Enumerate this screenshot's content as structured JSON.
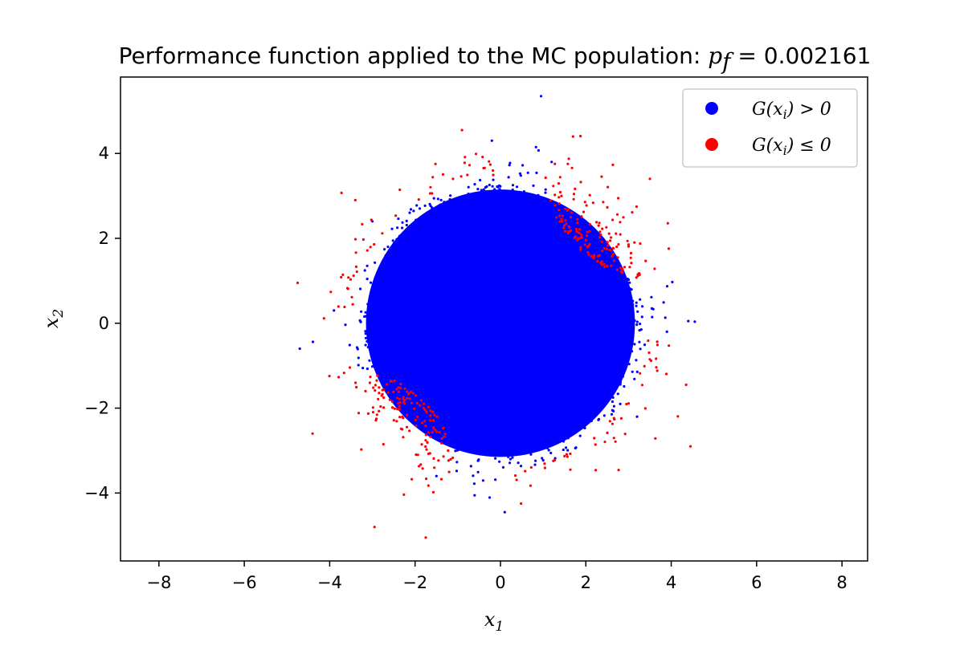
{
  "chart_data": {
    "type": "scatter",
    "title": "Performance function applied to the MC population: ",
    "title_math": "p",
    "title_math_sub": "f",
    "title_value": " = 0.002161",
    "xlabel": "x",
    "xlabel_sub": "1",
    "ylabel": "x",
    "ylabel_sub": "2",
    "xlim": [
      -8.9,
      8.6
    ],
    "ylim": [
      -5.6,
      5.8
    ],
    "xticks": [
      -8,
      -6,
      -4,
      -2,
      0,
      2,
      4,
      6,
      8
    ],
    "xtick_labels": [
      "−8",
      "−6",
      "−4",
      "−2",
      "0",
      "2",
      "4",
      "6",
      "8"
    ],
    "yticks": [
      -4,
      -2,
      0,
      2,
      4
    ],
    "ytick_labels": [
      "−4",
      "−2",
      "0",
      "2",
      "4"
    ],
    "grid": false,
    "legend_position": "top-right",
    "pf": 0.002161,
    "distribution": "standard normal, 2D, radius up to ~4.8",
    "failure_regions": "quadrants I and III corners beyond curved limit near |x1*x2| ~ 3.5 and outer ring in quadrants II and IV",
    "series": [
      {
        "name": "G(x_i) > 0",
        "legend_text": "G(x",
        "legend_sub": "i",
        "legend_rest": ") > 0",
        "color": "#0000ff",
        "points_sample": [
          [
            0.95,
            5.35
          ],
          [
            -4.7,
            -0.6
          ],
          [
            4.4,
            0.05
          ],
          [
            -0.2,
            4.3
          ],
          [
            0.1,
            -4.45
          ],
          [
            3.9,
            -0.2
          ],
          [
            -3.9,
            0.3
          ],
          [
            1.2,
            3.8
          ],
          [
            -1.5,
            -3.6
          ],
          [
            3.2,
            -2.2
          ],
          [
            -3.0,
            2.4
          ]
        ]
      },
      {
        "name": "G(x_i) ≤ 0",
        "legend_text": "G(x",
        "legend_sub": "i",
        "legend_rest": ") ≤ 0",
        "color": "#ff0000",
        "points_sample": [
          [
            -0.9,
            4.55
          ],
          [
            1.7,
            4.4
          ],
          [
            -2.95,
            -4.8
          ],
          [
            -1.75,
            -5.05
          ],
          [
            4.45,
            -2.9
          ],
          [
            -4.75,
            0.95
          ],
          [
            -4.4,
            -2.6
          ],
          [
            4.35,
            -1.45
          ],
          [
            2.3,
            2.3
          ],
          [
            -2.3,
            -2.5
          ],
          [
            3.5,
            3.4
          ],
          [
            -3.4,
            2.9
          ]
        ]
      }
    ]
  }
}
